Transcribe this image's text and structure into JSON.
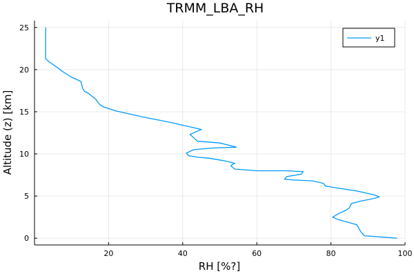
{
  "chart_data": {
    "type": "line",
    "title": "TRMM_LBA_RH",
    "xlabel": "RH [%?]",
    "ylabel": "Altitude (z) [km]",
    "xlim": [
      0,
      100
    ],
    "ylim": [
      -0.8,
      25.8
    ],
    "xticks": [
      20,
      40,
      60,
      80,
      100
    ],
    "yticks": [
      0,
      5,
      10,
      15,
      20,
      25
    ],
    "grid": true,
    "legend": "top-right",
    "series": [
      {
        "name": "y1",
        "color": "#009AF9",
        "points": [
          [
            97.8,
            0.0
          ],
          [
            89.0,
            0.3
          ],
          [
            88.0,
            0.8
          ],
          [
            87.0,
            1.6
          ],
          [
            84.5,
            1.9
          ],
          [
            82.0,
            2.2
          ],
          [
            80.5,
            2.5
          ],
          [
            82.0,
            2.9
          ],
          [
            84.0,
            3.3
          ],
          [
            85.0,
            3.6
          ],
          [
            85.5,
            4.1
          ],
          [
            88.0,
            4.4
          ],
          [
            91.5,
            4.7
          ],
          [
            93.0,
            4.9
          ],
          [
            92.0,
            5.1
          ],
          [
            87.0,
            5.6
          ],
          [
            81.0,
            6.0
          ],
          [
            78.5,
            6.2
          ],
          [
            78.0,
            6.5
          ],
          [
            75.0,
            6.8
          ],
          [
            70.0,
            6.9
          ],
          [
            67.5,
            7.0
          ],
          [
            68.0,
            7.3
          ],
          [
            72.0,
            7.6
          ],
          [
            72.5,
            7.9
          ],
          [
            68.0,
            8.0
          ],
          [
            60.0,
            8.0
          ],
          [
            54.0,
            8.2
          ],
          [
            53.0,
            8.6
          ],
          [
            54.0,
            8.9
          ],
          [
            51.0,
            9.2
          ],
          [
            47.0,
            9.5
          ],
          [
            44.0,
            9.6
          ],
          [
            41.5,
            9.8
          ],
          [
            41.0,
            10.1
          ],
          [
            43.0,
            10.5
          ],
          [
            48.0,
            10.7
          ],
          [
            54.5,
            10.8
          ],
          [
            50.0,
            11.3
          ],
          [
            44.0,
            11.5
          ],
          [
            43.0,
            11.9
          ],
          [
            42.0,
            12.3
          ],
          [
            45.0,
            12.9
          ],
          [
            42.0,
            13.2
          ],
          [
            36.0,
            13.8
          ],
          [
            29.0,
            14.4
          ],
          [
            22.0,
            15.1
          ],
          [
            18.5,
            15.6
          ],
          [
            17.5,
            15.9
          ],
          [
            16.5,
            16.5
          ],
          [
            14.5,
            17.2
          ],
          [
            13.5,
            17.4
          ],
          [
            13.0,
            17.8
          ],
          [
            12.5,
            18.6
          ],
          [
            10.0,
            19.1
          ],
          [
            7.5,
            19.8
          ],
          [
            6.0,
            20.3
          ],
          [
            4.0,
            20.9
          ],
          [
            3.0,
            21.3
          ],
          [
            3.0,
            23.0
          ],
          [
            3.0,
            25.0
          ]
        ]
      }
    ]
  }
}
